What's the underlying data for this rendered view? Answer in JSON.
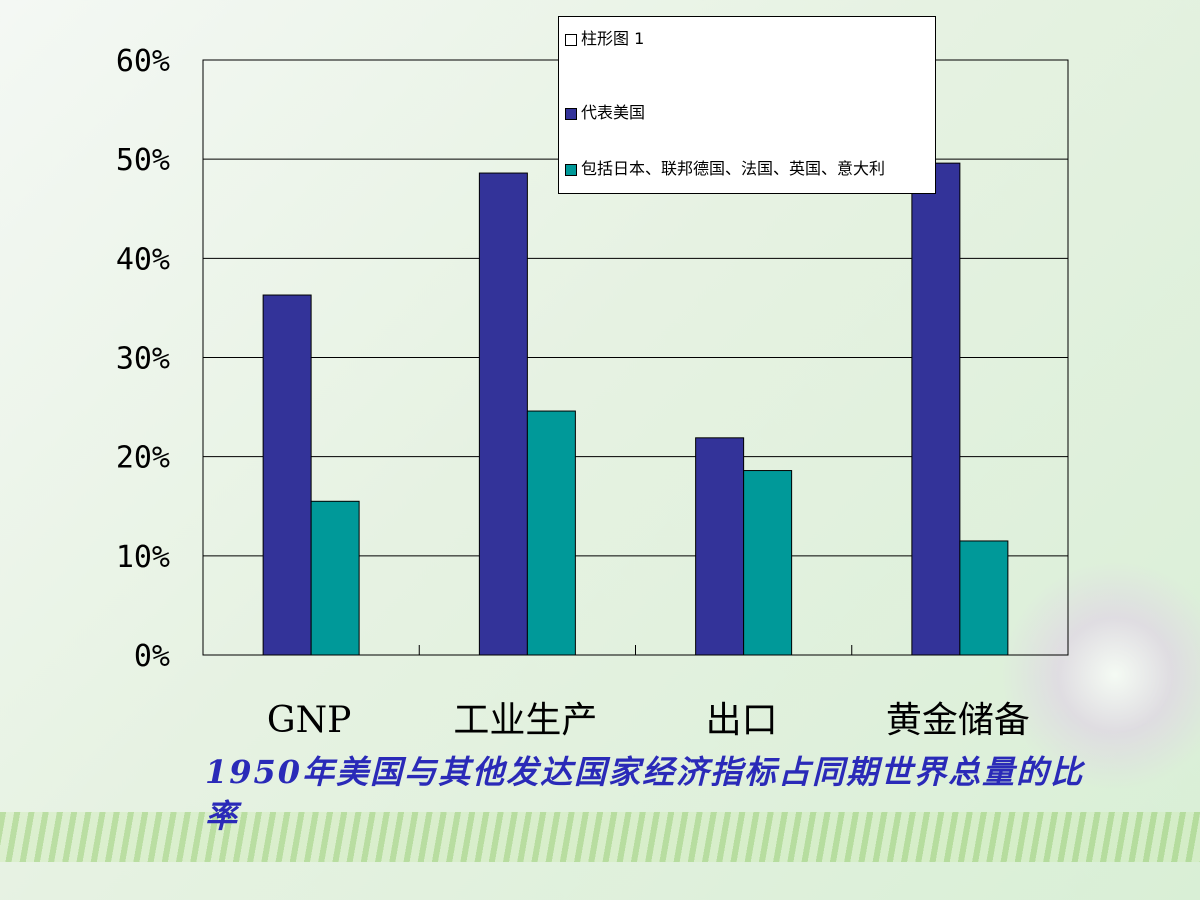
{
  "chart_data": {
    "type": "bar",
    "categories": [
      "GNP",
      "工业生产",
      "出口",
      "黄金储备"
    ],
    "series": [
      {
        "name": "柱形图 1",
        "values": [
          0,
          0,
          0,
          0
        ],
        "color": "#ffffff"
      },
      {
        "name": "代表美国",
        "values": [
          36.3,
          48.6,
          21.9,
          49.6
        ],
        "color": "#333399"
      },
      {
        "name": "包括日本、联邦德国、法国、英国、意大利",
        "values": [
          15.5,
          24.6,
          18.6,
          11.5
        ],
        "color": "#009999"
      }
    ],
    "yticks": [
      "0%",
      "10%",
      "20%",
      "30%",
      "40%",
      "50%",
      "60%"
    ],
    "ylim": [
      0,
      60
    ],
    "grid": true,
    "legend_position": "top-right"
  },
  "caption": "1950年美国与其他发达国家经济指标占同期世界总量的比率"
}
